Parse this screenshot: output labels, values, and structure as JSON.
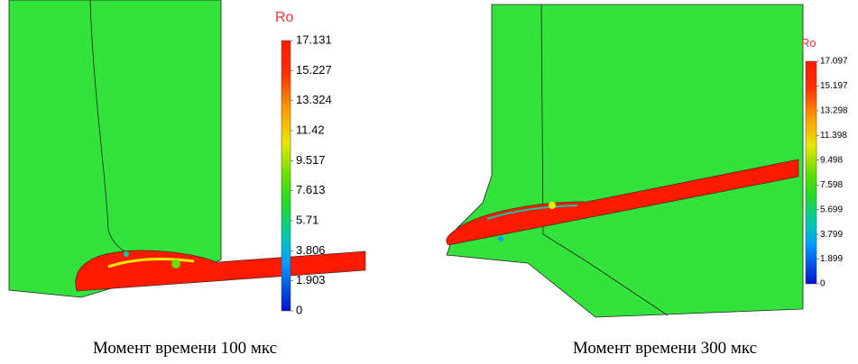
{
  "panels": [
    {
      "legend": {
        "title": "Ro",
        "ticks": [
          "17.131",
          "15.227",
          "13.324",
          "11.42",
          "9.517",
          "7.613",
          "5.71",
          "3.806",
          "1.903",
          "0"
        ]
      },
      "caption": "Момент времени 100 мкс"
    },
    {
      "legend": {
        "title": "Ro",
        "ticks": [
          "17.097",
          "15.197",
          "13.298",
          "11.398",
          "9.498",
          "7.598",
          "5.699",
          "3.799",
          "1.899",
          "0"
        ]
      },
      "caption": "Момент времени 300 мкс"
    }
  ]
}
